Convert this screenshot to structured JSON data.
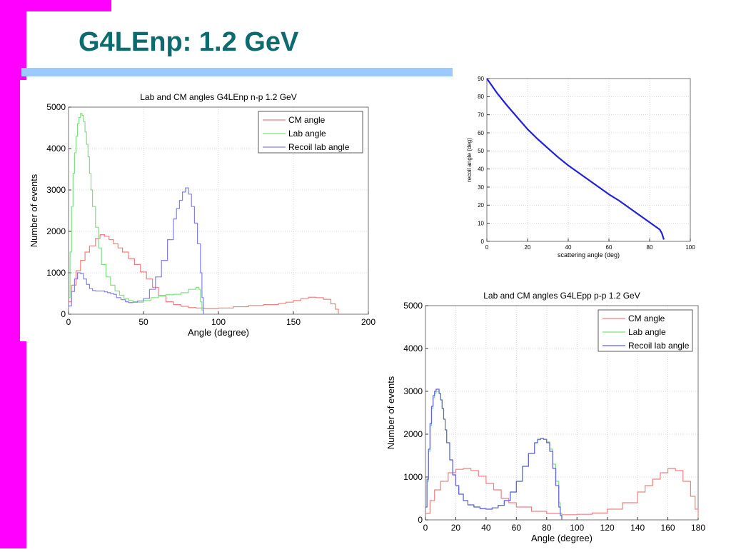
{
  "slide": {
    "title": "G4LEnp: 1.2 GeV",
    "colors": {
      "accent_bar": "#ff00ff",
      "title": "#0b6b6e",
      "rule": "#9cc9ff"
    }
  },
  "chart_data": [
    {
      "id": "np",
      "type": "line",
      "title": "Lab and CM angles G4LEnp n-p 1.2 GeV",
      "xlabel": "Angle (degree)",
      "ylabel": "Number of events",
      "xlim": [
        0,
        200
      ],
      "ylim": [
        0,
        5000
      ],
      "xticks": [
        0,
        50,
        100,
        150,
        200
      ],
      "yticks": [
        0,
        1000,
        2000,
        3000,
        4000,
        5000
      ],
      "grid": true,
      "legend_position": "top-right",
      "series": [
        {
          "name": "CM angle",
          "color": "#f08080",
          "x": [
            0,
            2,
            5,
            8,
            11,
            14,
            18,
            21,
            24,
            27,
            30,
            33,
            36,
            40,
            44,
            48,
            52,
            56,
            60,
            65,
            70,
            75,
            80,
            85,
            90,
            95,
            100,
            110,
            120,
            130,
            140,
            145,
            150,
            155,
            160,
            165,
            170,
            175,
            178,
            180
          ],
          "y": [
            300,
            700,
            1050,
            1300,
            1500,
            1650,
            1830,
            1920,
            1880,
            1800,
            1700,
            1600,
            1500,
            1340,
            1200,
            1020,
            850,
            650,
            450,
            300,
            230,
            190,
            160,
            150,
            140,
            140,
            150,
            180,
            210,
            230,
            260,
            290,
            330,
            380,
            410,
            400,
            360,
            250,
            120,
            0
          ]
        },
        {
          "name": "Lab angle",
          "color": "#80e080",
          "x": [
            0,
            1,
            2,
            3,
            4,
            5,
            6,
            7,
            8,
            9,
            10,
            11,
            12,
            13,
            14,
            15,
            16,
            18,
            20,
            22,
            25,
            28,
            31,
            34,
            37,
            40,
            43,
            46,
            50,
            55,
            60,
            65,
            70,
            75,
            80,
            85,
            87,
            88,
            89,
            90
          ],
          "y": [
            400,
            1500,
            2600,
            3400,
            3900,
            4300,
            4600,
            4750,
            4850,
            4800,
            4650,
            4400,
            4100,
            3800,
            3400,
            3000,
            2600,
            2100,
            1600,
            1200,
            900,
            700,
            560,
            460,
            380,
            330,
            300,
            290,
            330,
            400,
            440,
            470,
            480,
            520,
            600,
            650,
            600,
            300,
            100,
            0
          ]
        },
        {
          "name": "Recoil lab angle",
          "color": "#8080f0",
          "x": [
            0,
            2,
            4,
            6,
            8,
            10,
            12,
            14,
            16,
            18,
            20,
            22,
            24,
            26,
            28,
            30,
            32,
            35,
            38,
            40,
            43,
            46,
            50,
            54,
            58,
            62,
            66,
            70,
            72,
            74,
            76,
            78,
            80,
            82,
            84,
            86,
            88,
            89,
            90
          ],
          "y": [
            200,
            550,
            850,
            1000,
            980,
            850,
            720,
            620,
            570,
            560,
            560,
            560,
            540,
            520,
            500,
            480,
            400,
            350,
            300,
            280,
            290,
            320,
            380,
            600,
            900,
            1300,
            1800,
            2300,
            2550,
            2750,
            2950,
            3050,
            2900,
            2600,
            2200,
            1700,
            1000,
            400,
            0
          ]
        }
      ]
    },
    {
      "id": "recoil",
      "type": "line",
      "title": "",
      "xlabel": "scattering angle (deg)",
      "ylabel": "recoil angle (deg)",
      "xlim": [
        0,
        100
      ],
      "ylim": [
        0,
        90
      ],
      "xticks": [
        0,
        20,
        40,
        60,
        80,
        100
      ],
      "yticks": [
        0,
        10,
        20,
        30,
        40,
        50,
        60,
        70,
        80,
        90
      ],
      "grid": true,
      "series": [
        {
          "color": "#2020e0",
          "x": [
            0,
            5,
            10,
            15,
            20,
            25,
            30,
            35,
            40,
            45,
            50,
            55,
            60,
            65,
            70,
            75,
            80,
            85,
            86,
            87
          ],
          "y": [
            90,
            82,
            75,
            68.5,
            62,
            56.5,
            51.5,
            46.5,
            42,
            38,
            34,
            30,
            26,
            22.5,
            18.5,
            14.5,
            10.5,
            6.5,
            4.5,
            1
          ]
        }
      ]
    },
    {
      "id": "pp",
      "type": "line",
      "title": "Lab and CM angles G4LEpp p-p 1.2 GeV",
      "xlabel": "Angle (degree)",
      "ylabel": "Number of events",
      "xlim": [
        0,
        180
      ],
      "ylim": [
        0,
        5000
      ],
      "xticks": [
        0,
        20,
        40,
        60,
        80,
        100,
        120,
        140,
        160,
        180
      ],
      "yticks": [
        0,
        1000,
        2000,
        3000,
        4000,
        5000
      ],
      "grid": true,
      "legend_position": "top-right",
      "series": [
        {
          "name": "CM angle",
          "color": "#f08080",
          "x": [
            0,
            3,
            6,
            10,
            15,
            20,
            25,
            30,
            35,
            40,
            45,
            50,
            55,
            60,
            70,
            80,
            90,
            100,
            110,
            120,
            130,
            140,
            145,
            150,
            155,
            160,
            165,
            170,
            175,
            178,
            180
          ],
          "y": [
            150,
            450,
            700,
            900,
            1100,
            1180,
            1200,
            1150,
            1020,
            850,
            700,
            500,
            400,
            300,
            200,
            150,
            120,
            130,
            160,
            250,
            400,
            650,
            800,
            950,
            1100,
            1200,
            1150,
            900,
            550,
            250,
            50
          ]
        },
        {
          "name": "Lab angle",
          "color": "#80e080",
          "x": [
            0,
            1,
            2,
            3,
            4,
            5,
            6,
            7,
            8,
            9,
            10,
            11,
            12,
            13,
            14,
            16,
            18,
            20,
            22,
            25,
            28,
            32,
            36,
            40,
            44,
            48,
            52,
            56,
            60,
            64,
            68,
            72,
            74,
            76,
            78,
            80,
            82,
            84,
            86,
            88,
            89,
            90
          ],
          "y": [
            300,
            900,
            1600,
            2200,
            2600,
            2850,
            2950,
            3000,
            3000,
            2950,
            2800,
            2600,
            2350,
            2100,
            1800,
            1400,
            1050,
            800,
            600,
            450,
            350,
            300,
            260,
            250,
            280,
            340,
            450,
            650,
            900,
            1250,
            1550,
            1800,
            1870,
            1900,
            1880,
            1820,
            1650,
            1300,
            900,
            400,
            150,
            0
          ]
        },
        {
          "name": "Recoil lab angle",
          "color": "#6060e0",
          "x": [
            0,
            1,
            2,
            3,
            4,
            5,
            6,
            7,
            8,
            9,
            10,
            11,
            12,
            13,
            14,
            16,
            18,
            20,
            22,
            25,
            28,
            32,
            36,
            40,
            44,
            48,
            52,
            56,
            60,
            64,
            68,
            72,
            74,
            76,
            78,
            80,
            82,
            84,
            86,
            88,
            89,
            90
          ],
          "y": [
            300,
            950,
            1650,
            2250,
            2650,
            2900,
            3000,
            3050,
            3050,
            2950,
            2800,
            2600,
            2350,
            2100,
            1800,
            1400,
            1050,
            800,
            600,
            450,
            350,
            300,
            260,
            250,
            280,
            340,
            450,
            650,
            900,
            1250,
            1550,
            1800,
            1880,
            1900,
            1880,
            1800,
            1600,
            1200,
            800,
            300,
            100,
            0
          ]
        }
      ]
    }
  ]
}
